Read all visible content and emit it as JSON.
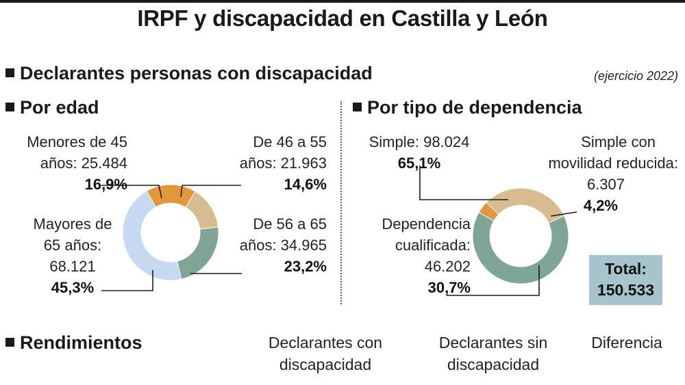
{
  "title": "IRPF y discapacidad en Castilla y León",
  "section1": {
    "heading": "Declarantes personas con discapacidad",
    "note": "(ejercicio 2022)"
  },
  "by_age": {
    "heading": "Por edad",
    "labels": [
      {
        "line1": "Menores de 45",
        "line2": "años: 25.484",
        "pct": "16,9%"
      },
      {
        "line1": "De 46 a 55",
        "line2": "años: 21.963",
        "pct": "14,6%"
      },
      {
        "line1": "De 56 a 65",
        "line2": "años: 34.965",
        "pct": "23,2%"
      },
      {
        "line1": "Mayores de",
        "line2": "65 años:",
        "line3": "68.121",
        "pct": "45,3%"
      }
    ]
  },
  "by_dependency": {
    "heading": "Por tipo de dependencia",
    "labels": [
      {
        "line1": "Simple: 98.024",
        "pct": "65,1%"
      },
      {
        "line1": "Simple con",
        "line2": "movilidad reducida:",
        "line3": "6.307",
        "pct": "4,2%"
      },
      {
        "line1": "Dependencia",
        "line2": "cualificada:",
        "line3": "46.202",
        "pct": "30,7%"
      }
    ],
    "total_label": "Total:",
    "total_value": "150.533"
  },
  "section2": {
    "heading": "Rendimientos",
    "columns": [
      {
        "line1": "Declarantes con",
        "line2": "discapacidad"
      },
      {
        "line1": "Declarantes sin",
        "line2": "discapacidad"
      },
      {
        "line1": "Diferencia"
      }
    ]
  },
  "chart_data": [
    {
      "type": "pie",
      "categories": [
        "Menores de 45 años",
        "De 46 a 55 años",
        "De 56 a 65 años",
        "Mayores de 65 años"
      ],
      "values": [
        25484,
        21963,
        34965,
        68121
      ],
      "percentages": [
        16.9,
        14.6,
        23.2,
        45.3
      ],
      "colors": [
        "#e3973a",
        "#d7bc8f",
        "#7fa596",
        "#c5daf0"
      ]
    },
    {
      "type": "pie",
      "categories": [
        "Simple",
        "Simple con movilidad reducida",
        "Dependencia cualificada"
      ],
      "values": [
        98024,
        6307,
        46202
      ],
      "percentages": [
        65.1,
        4.2,
        30.7
      ],
      "colors": [
        "#7fa596",
        "#e3973a",
        "#d7bc8f"
      ],
      "total": 150533
    }
  ]
}
